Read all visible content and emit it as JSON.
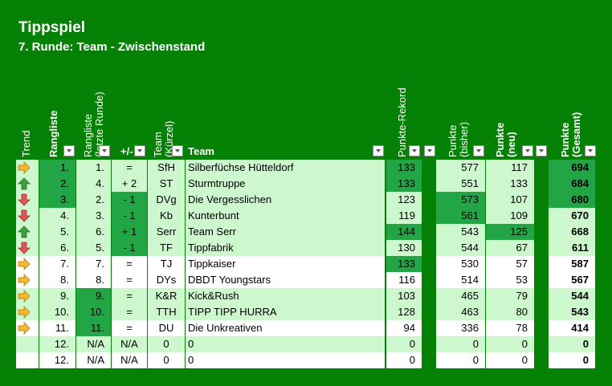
{
  "title": "Tippspiel",
  "subtitle": "7. Runde: Team - Zwischenstand",
  "headers": {
    "trend": "Trend",
    "rangliste": "Rangliste",
    "rangliste_letzte_1": "Rangliste",
    "rangliste_letzte_2": "(letzte Runde)",
    "plusminus": "+/-",
    "team_kurz_1": "Team",
    "team_kurz_2": "(Kürzel)",
    "team": "Team",
    "rekord": "Punkte-Rekord",
    "bisher_1": "Punkte",
    "bisher_2": "(bisher)",
    "neu_1": "Punkte",
    "neu_2": "(neu)",
    "gesamt_1": "Punkte",
    "gesamt_2": "(Gesamt)"
  },
  "colors": {
    "up": "#3f9f3f",
    "down": "#e05555",
    "same": "#f5b82e",
    "green_dark": "#22a545",
    "green_light": "#cdf7cd",
    "white": "#ffffff"
  },
  "rows": [
    {
      "trend": "same",
      "rank": "1.",
      "prev": "1.",
      "diff": "=",
      "code": "SfH",
      "team": "Silberfüchse Hütteldorf",
      "rekord": "133",
      "bisher": "577",
      "neu": "117",
      "gesamt": "694"
    },
    {
      "trend": "up",
      "rank": "2.",
      "prev": "4.",
      "diff": "+ 2",
      "code": "ST",
      "team": "Sturmtruppe",
      "rekord": "133",
      "bisher": "551",
      "neu": "133",
      "gesamt": "684"
    },
    {
      "trend": "down",
      "rank": "3.",
      "prev": "2.",
      "diff": "- 1",
      "code": "DVg",
      "team": "Die Vergesslichen",
      "rekord": "123",
      "bisher": "573",
      "neu": "107",
      "gesamt": "680"
    },
    {
      "trend": "down",
      "rank": "4.",
      "prev": "3.",
      "diff": "- 1",
      "code": "Kb",
      "team": "Kunterbunt",
      "rekord": "119",
      "bisher": "561",
      "neu": "109",
      "gesamt": "670"
    },
    {
      "trend": "up",
      "rank": "5.",
      "prev": "6.",
      "diff": "+ 1",
      "code": "Serr",
      "team": "Team Serr",
      "rekord": "144",
      "bisher": "543",
      "neu": "125",
      "gesamt": "668"
    },
    {
      "trend": "down",
      "rank": "6.",
      "prev": "5.",
      "diff": "- 1",
      "code": "TF",
      "team": "Tippfabrik",
      "rekord": "130",
      "bisher": "544",
      "neu": "67",
      "gesamt": "611"
    },
    {
      "trend": "same",
      "rank": "7.",
      "prev": "7.",
      "diff": "=",
      "code": "TJ",
      "team": "Tippkaiser",
      "rekord": "133",
      "bisher": "530",
      "neu": "57",
      "gesamt": "587"
    },
    {
      "trend": "same",
      "rank": "8.",
      "prev": "8.",
      "diff": "=",
      "code": "DYs",
      "team": "DBDT Youngstars",
      "rekord": "116",
      "bisher": "514",
      "neu": "53",
      "gesamt": "567"
    },
    {
      "trend": "same",
      "rank": "9.",
      "prev": "9.",
      "diff": "=",
      "code": "K&R",
      "team": "Kick&Rush",
      "rekord": "103",
      "bisher": "465",
      "neu": "79",
      "gesamt": "544"
    },
    {
      "trend": "same",
      "rank": "10.",
      "prev": "10.",
      "diff": "=",
      "code": "TTH",
      "team": "TIPP TIPP HURRA",
      "rekord": "128",
      "bisher": "463",
      "neu": "80",
      "gesamt": "543"
    },
    {
      "trend": "same",
      "rank": "11.",
      "prev": "11.",
      "diff": "=",
      "code": "DU",
      "team": "Die Unkreativen",
      "rekord": "94",
      "bisher": "336",
      "neu": "78",
      "gesamt": "414"
    },
    {
      "trend": "",
      "rank": "12.",
      "prev": "N/A",
      "diff": "N/A",
      "code": "0",
      "team": "0",
      "rekord": "0",
      "bisher": "0",
      "neu": "0",
      "gesamt": "0"
    },
    {
      "trend": "",
      "rank": "12.",
      "prev": "N/A",
      "diff": "N/A",
      "code": "0",
      "team": "0",
      "rekord": "0",
      "bisher": "0",
      "neu": "0",
      "gesamt": "0"
    }
  ]
}
